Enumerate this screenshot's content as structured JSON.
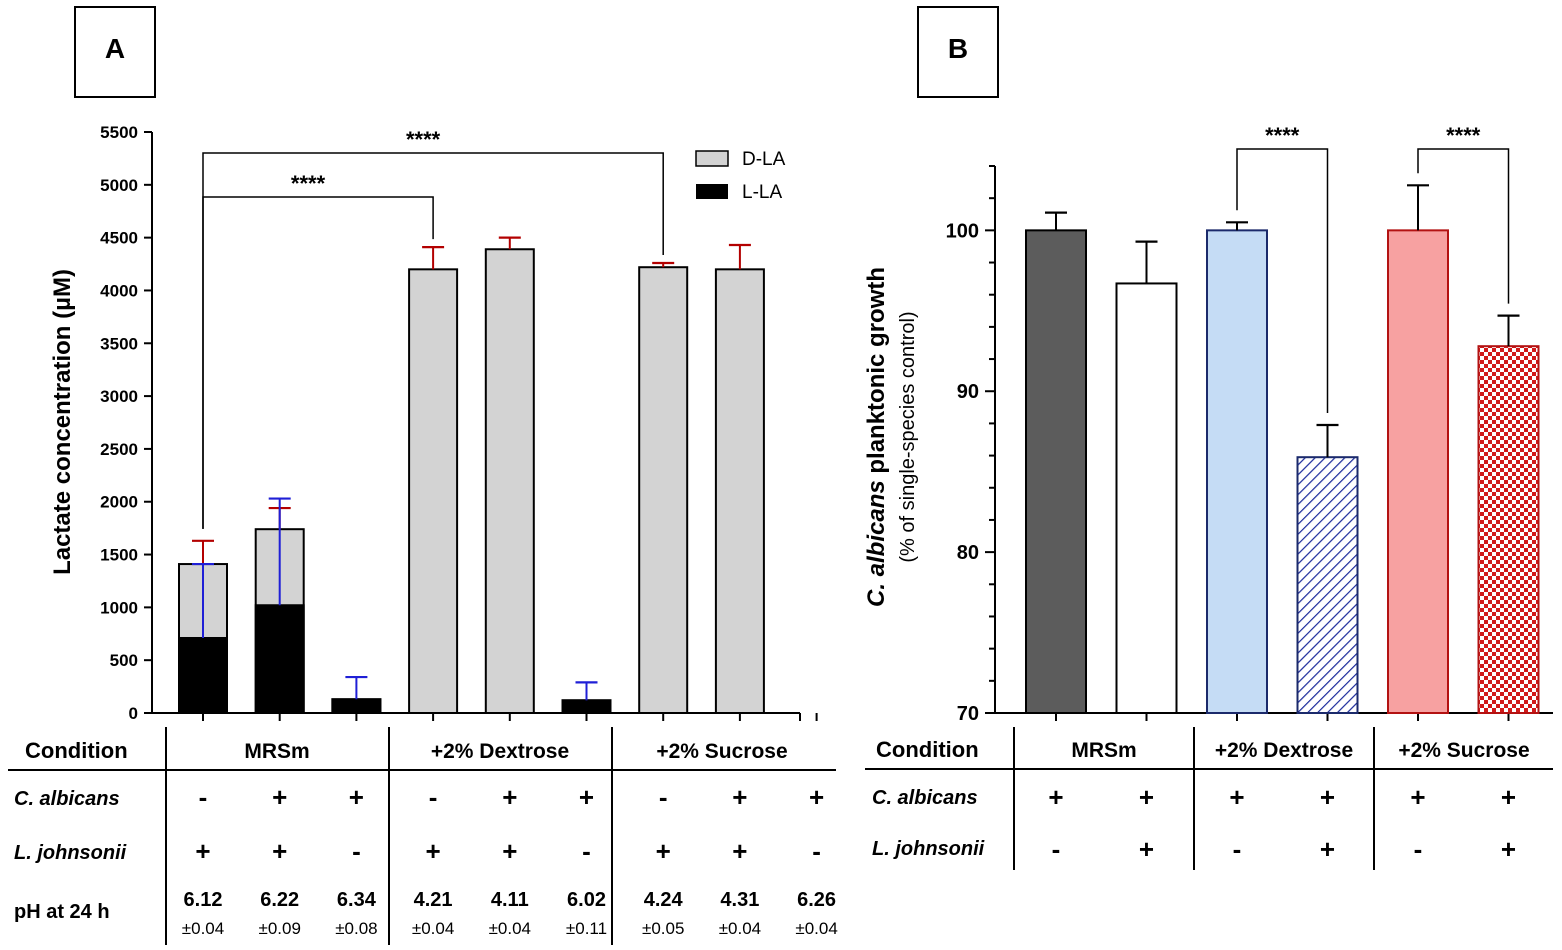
{
  "panels": {
    "a": {
      "label": "A"
    },
    "b": {
      "label": "B"
    }
  },
  "colors": {
    "d_la": "#d3d3d3",
    "l_la": "#000000",
    "err_red": "#b30000",
    "err_blue": "#1f1fd6",
    "b_dark": "#5c5c5c",
    "b_blue_fill": "#c5dcf5",
    "b_blue_edge": "#1b2a6b",
    "b_red_fill": "#f7a1a1",
    "b_red_edge": "#b31212"
  },
  "chart_data": [
    {
      "panel": "A",
      "type": "bar",
      "stacked": true,
      "ylabel": "Lactate concentration (µM)",
      "ylim": [
        0,
        5500
      ],
      "yticks": [
        0,
        500,
        1000,
        1500,
        2000,
        2500,
        3000,
        3500,
        4000,
        4500,
        5000,
        5500
      ],
      "legend": [
        "D-LA",
        "L-LA"
      ],
      "legend_position": "top-right",
      "bars": [
        {
          "group": "MRSm",
          "c_albicans": "-",
          "l_johnsonii": "+",
          "l_la": 710,
          "total": 1410,
          "err_total": 220,
          "err_l": 700,
          "ph": "6.12",
          "ph_sd": "±0.04"
        },
        {
          "group": "MRSm",
          "c_albicans": "+",
          "l_johnsonii": "+",
          "l_la": 1020,
          "total": 1740,
          "err_total": 200,
          "err_l": 1010,
          "ph": "6.22",
          "ph_sd": "±0.09"
        },
        {
          "group": "MRSm",
          "c_albicans": "+",
          "l_johnsonii": "-",
          "l_la": 130,
          "total": 130,
          "err_total": 0,
          "err_l": 210,
          "ph": "6.34",
          "ph_sd": "±0.08"
        },
        {
          "group": "+2% Dextrose",
          "c_albicans": "-",
          "l_johnsonii": "+",
          "l_la": 0,
          "total": 4200,
          "err_total": 210,
          "err_l": 0,
          "ph": "4.21",
          "ph_sd": "±0.04"
        },
        {
          "group": "+2% Dextrose",
          "c_albicans": "+",
          "l_johnsonii": "+",
          "l_la": 0,
          "total": 4390,
          "err_total": 110,
          "err_l": 0,
          "ph": "4.11",
          "ph_sd": "±0.04"
        },
        {
          "group": "+2% Dextrose",
          "c_albicans": "+",
          "l_johnsonii": "-",
          "l_la": 120,
          "total": 120,
          "err_total": 0,
          "err_l": 170,
          "ph": "6.02",
          "ph_sd": "±0.11"
        },
        {
          "group": "+2% Sucrose",
          "c_albicans": "-",
          "l_johnsonii": "+",
          "l_la": 0,
          "total": 4220,
          "err_total": 40,
          "err_l": 0,
          "ph": "4.24",
          "ph_sd": "±0.05"
        },
        {
          "group": "+2% Sucrose",
          "c_albicans": "+",
          "l_johnsonii": "+",
          "l_la": 0,
          "total": 4200,
          "err_total": 230,
          "err_l": 0,
          "ph": "4.31",
          "ph_sd": "±0.04"
        },
        {
          "group": "+2% Sucrose",
          "c_albicans": "+",
          "l_johnsonii": "-",
          "l_la": 0,
          "total": 0,
          "err_total": 0,
          "err_l": 0,
          "ph": "6.26",
          "ph_sd": "±0.04"
        }
      ],
      "significance": [
        {
          "from": 0,
          "to": 3,
          "label": "****"
        },
        {
          "from": 0,
          "to": 6,
          "label": "****"
        }
      ],
      "table": {
        "condition_label": "Condition",
        "c_albicans_label": "C. albicans",
        "l_johnsonii_label": "L. johnsonii",
        "ph_label": "pH at 24 h",
        "groups": [
          "MRSm",
          "+2% Dextrose",
          "+2% Sucrose"
        ]
      }
    },
    {
      "panel": "B",
      "type": "bar",
      "ylabel_italic": "C. albicans",
      "ylabel_rest": " planktonic growth",
      "ylabel_sub": "(% of single-species control)",
      "ylim": [
        70,
        104
      ],
      "yticks": [
        70,
        80,
        90,
        100
      ],
      "bars": [
        {
          "group": "MRSm",
          "c_albicans": "+",
          "l_johnsonii": "-",
          "value": 100,
          "err": 1.1,
          "style": "dark"
        },
        {
          "group": "MRSm",
          "c_albicans": "+",
          "l_johnsonii": "+",
          "value": 96.7,
          "err": 2.6,
          "style": "white"
        },
        {
          "group": "+2% Dextrose",
          "c_albicans": "+",
          "l_johnsonii": "-",
          "value": 100,
          "err": 0.5,
          "style": "blue"
        },
        {
          "group": "+2% Dextrose",
          "c_albicans": "+",
          "l_johnsonii": "+",
          "value": 85.9,
          "err": 2.0,
          "style": "blue-hatch"
        },
        {
          "group": "+2% Sucrose",
          "c_albicans": "+",
          "l_johnsonii": "-",
          "value": 100,
          "err": 2.8,
          "style": "red"
        },
        {
          "group": "+2% Sucrose",
          "c_albicans": "+",
          "l_johnsonii": "+",
          "value": 92.8,
          "err": 1.9,
          "style": "red-check"
        }
      ],
      "significance": [
        {
          "from": 2,
          "to": 3,
          "label": "****"
        },
        {
          "from": 4,
          "to": 5,
          "label": "****"
        }
      ],
      "table": {
        "condition_label": "Condition",
        "c_albicans_label": "C. albicans",
        "l_johnsonii_label": "L. johnsonii",
        "groups": [
          "MRSm",
          "+2% Dextrose",
          "+2% Sucrose"
        ]
      }
    }
  ]
}
